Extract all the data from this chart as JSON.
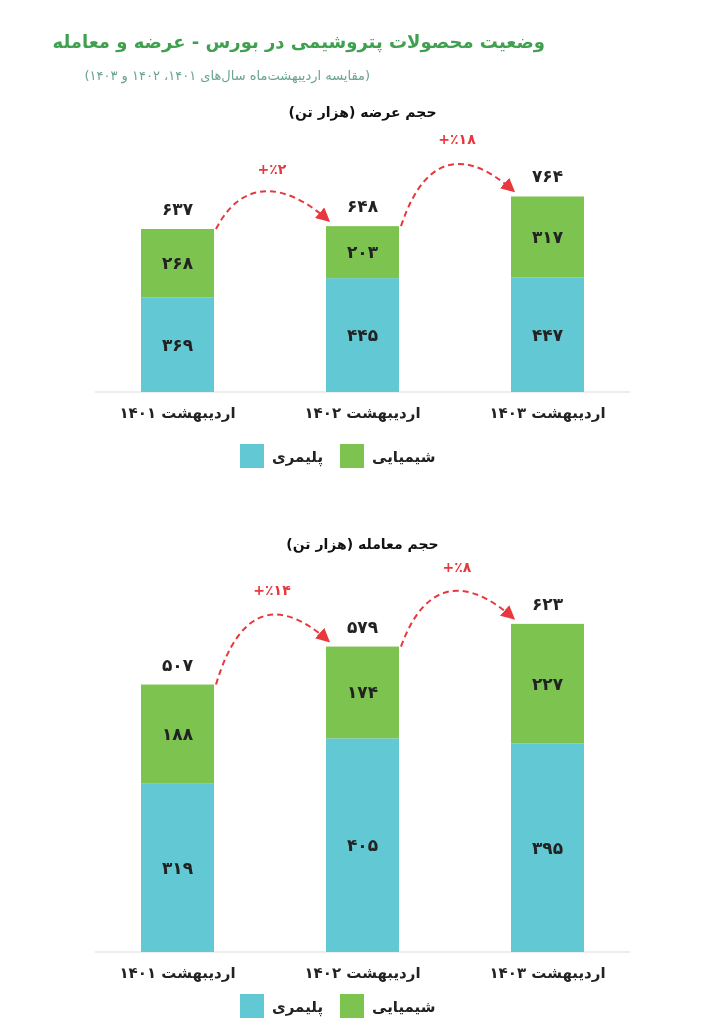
{
  "chart_data": [
    {
      "type": "bar",
      "stacked": true,
      "title": "وضعیت محصولات پتروشیمی در بورس - عرضه و معامله",
      "subtitle": "(مقایسه اردیبهشت‌ماه سال‌های ۱۴۰۱، ۱۴۰۲ و ۱۴۰۳)",
      "ylabel": "حجم عرضه (هزار تن)",
      "categories": [
        "اردیبهشت ۱۴۰۱",
        "اردیبهشت ۱۴۰۲",
        "اردیبهشت ۱۴۰۳"
      ],
      "series": [
        {
          "name": "پلیمری",
          "color": "#62c9d4",
          "values": [
            369,
            445,
            447
          ],
          "value_labels": [
            "۳۶۹",
            "۴۴۵",
            "۴۴۷"
          ]
        },
        {
          "name": "شیمیایی",
          "color": "#7cc350",
          "values": [
            268,
            203,
            317
          ],
          "value_labels": [
            "۲۶۸",
            "۲۰۳",
            "۳۱۷"
          ]
        }
      ],
      "totals": [
        "۶۳۷",
        "۶۴۸",
        "۷۶۴"
      ],
      "annotations": [
        "+٪۲",
        "+٪۱۸"
      ],
      "legend": "bottom"
    },
    {
      "type": "bar",
      "stacked": true,
      "ylabel": "حجم معامله (هزار تن)",
      "categories": [
        "اردیبهشت ۱۴۰۱",
        "اردیبهشت ۱۴۰۲",
        "اردیبهشت ۱۴۰۳"
      ],
      "series": [
        {
          "name": "پلیمری",
          "color": "#62c9d4",
          "values": [
            319,
            405,
            395
          ],
          "value_labels": [
            "۳۱۹",
            "۴۰۵",
            "۳۹۵"
          ]
        },
        {
          "name": "شیمیایی",
          "color": "#7cc350",
          "values": [
            188,
            174,
            227
          ],
          "value_labels": [
            "۱۸۸",
            "۱۷۴",
            "۲۲۷"
          ]
        }
      ],
      "totals": [
        "۵۰۷",
        "۵۷۹",
        "۶۲۳"
      ],
      "annotations": [
        "+٪۱۴",
        "+٪۸"
      ],
      "legend": "bottom"
    }
  ]
}
